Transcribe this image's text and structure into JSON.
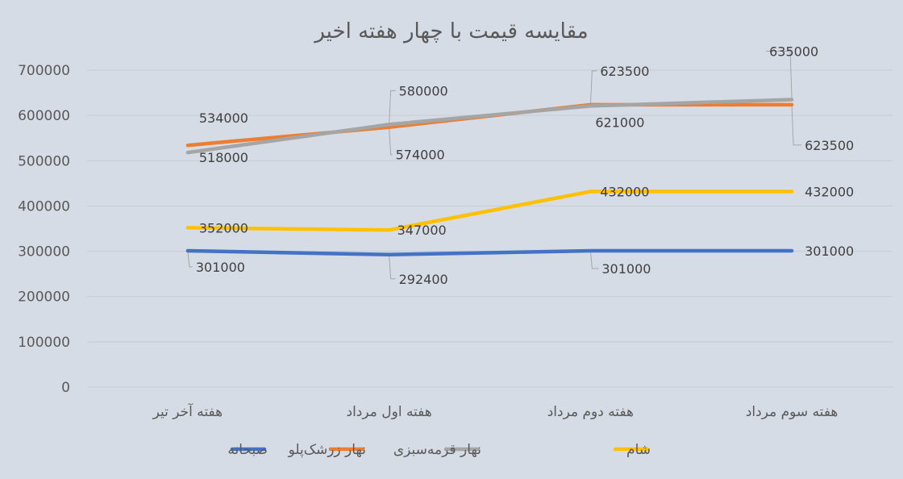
{
  "chart_data": {
    "type": "line",
    "title": "مقایسه قیمت با چهار هفته اخیر",
    "categories": [
      "هفته آخر تیر",
      "هفته اول مرداد",
      "هفته دوم مرداد",
      "هفته سوم مرداد"
    ],
    "ylim": [
      0,
      700000
    ],
    "yticks": [
      0,
      100000,
      200000,
      300000,
      400000,
      500000,
      600000,
      700000
    ],
    "grid": true,
    "legend_position": "bottom",
    "series": [
      {
        "name": "صبحانه",
        "color": "#4472c4",
        "values": [
          301000,
          292400,
          301000,
          301000
        ],
        "labels": [
          "301000",
          "292400",
          "301000",
          "301000"
        ]
      },
      {
        "name": "نهار زرشک‌پلو",
        "color": "#ed7d31",
        "values": [
          534000,
          574000,
          623500,
          623500
        ],
        "labels": [
          "534000",
          "574000",
          "623500",
          "623500"
        ]
      },
      {
        "name": "نهار قرمه‌سبزی",
        "color": "#a5a5a5",
        "values": [
          518000,
          580000,
          621000,
          635000
        ],
        "labels": [
          "518000",
          "580000",
          "621000",
          "635000"
        ]
      },
      {
        "name": "شام",
        "color": "#ffc000",
        "values": [
          352000,
          347000,
          432000,
          432000
        ],
        "labels": [
          "352000",
          "347000",
          "432000",
          "432000"
        ]
      }
    ]
  }
}
